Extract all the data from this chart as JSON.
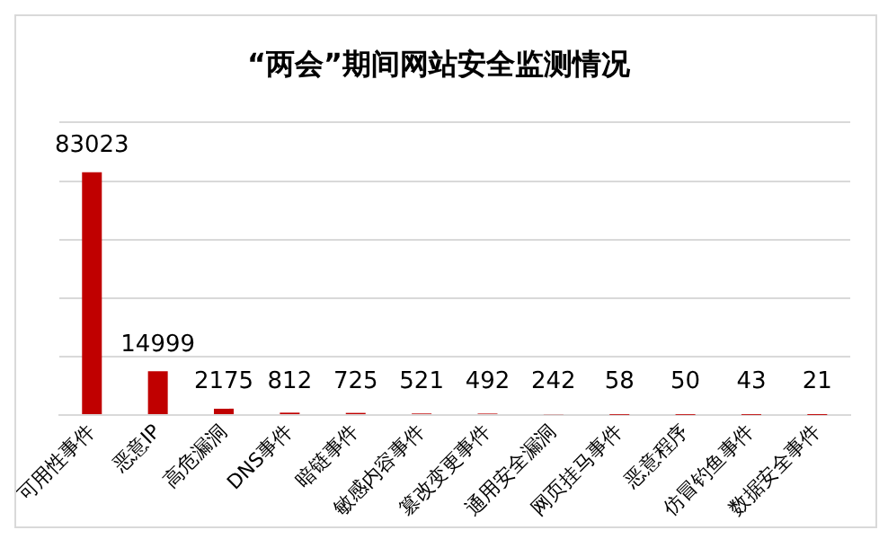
{
  "chart_data": {
    "type": "bar",
    "title": "“两会”期间网站安全监测情况",
    "categories": [
      "可用性事件",
      "恶意IP",
      "高危漏洞",
      "DNS事件",
      "暗链事件",
      "敏感内容事件",
      "篡改变更事件",
      "通用安全漏洞",
      "网页挂马事件",
      "恶意程序",
      "仿冒钓鱼事件",
      "数据安全事件"
    ],
    "values": [
      83023,
      14999,
      2175,
      812,
      725,
      521,
      492,
      242,
      58,
      50,
      43,
      21
    ],
    "color": "#c00000",
    "ylim": [
      0,
      100000
    ],
    "yticks": [
      {
        "value": 0,
        "label": null
      },
      {
        "value": 20000,
        "label": null
      },
      {
        "value": 40000,
        "label": null
      },
      {
        "value": 60000,
        "label": null
      },
      {
        "value": 80000,
        "label": null
      },
      {
        "value": 100000,
        "label": null
      }
    ],
    "grid": "y",
    "data_labels": true,
    "tick_labels": "x",
    "legend": false
  }
}
